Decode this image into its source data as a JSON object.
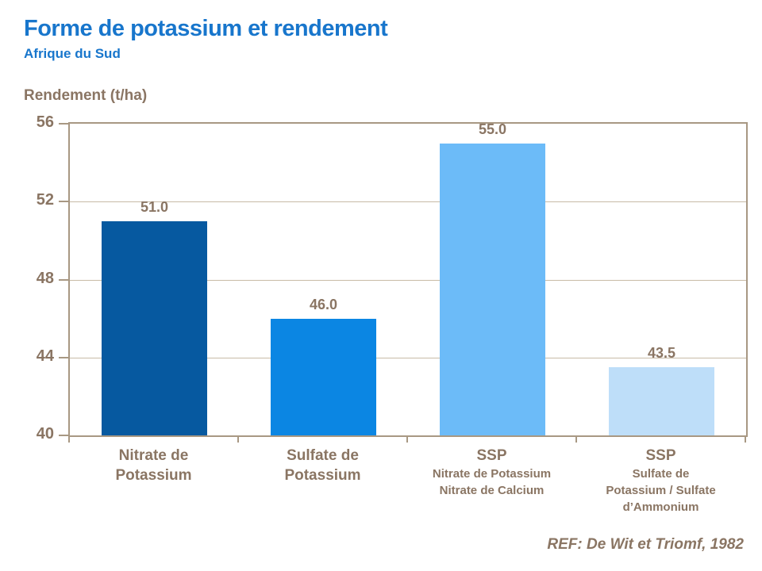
{
  "header": {
    "title": "Forme de potassium et rendement",
    "subtitle": "Afrique du Sud"
  },
  "chart_data": {
    "type": "bar",
    "title": "Forme de potassium et rendement",
    "subtitle": "Afrique du Sud",
    "ylabel": "Rendement (t/ha)",
    "xlabel": "",
    "ylim": [
      40,
      56
    ],
    "yticks": [
      40,
      44,
      48,
      52,
      56
    ],
    "grid": true,
    "legend": "none",
    "categories": [
      "Nitrate de Potassium",
      "Sulfate de Potassium",
      "SSP (Nitrate de Potassium / Nitrate de Calcium)",
      "SSP (Sulfate de Potassium / Sulfate d’Ammonium)"
    ],
    "category_labels": [
      {
        "name_lines": [
          "Nitrate de",
          "Potassium"
        ],
        "detail_lines": []
      },
      {
        "name_lines": [
          "Sulfate de",
          "Potassium"
        ],
        "detail_lines": []
      },
      {
        "name_lines": [
          "SSP"
        ],
        "detail_lines": [
          "Nitrate de Potassium",
          "Nitrate de Calcium"
        ]
      },
      {
        "name_lines": [
          "SSP"
        ],
        "detail_lines": [
          "Sulfate de",
          "Potassium / Sulfate",
          "d’Ammonium"
        ]
      }
    ],
    "values": [
      51.0,
      46.0,
      55.0,
      43.5
    ],
    "value_labels": [
      "51.0",
      "46.0",
      "55.0",
      "43.5"
    ],
    "bar_colors": [
      "#0659A0",
      "#0B86E3",
      "#6CBBF8",
      "#BEDEF9"
    ]
  },
  "footer": {
    "reference": "REF: De Wit et Triomf, 1982"
  },
  "colors": {
    "title_blue": "#1876CC",
    "text_brown": "#8A7563",
    "gridline_tan": "#C8BBA6",
    "axis_tan": "#A89883",
    "background": "#FFFFFF"
  }
}
